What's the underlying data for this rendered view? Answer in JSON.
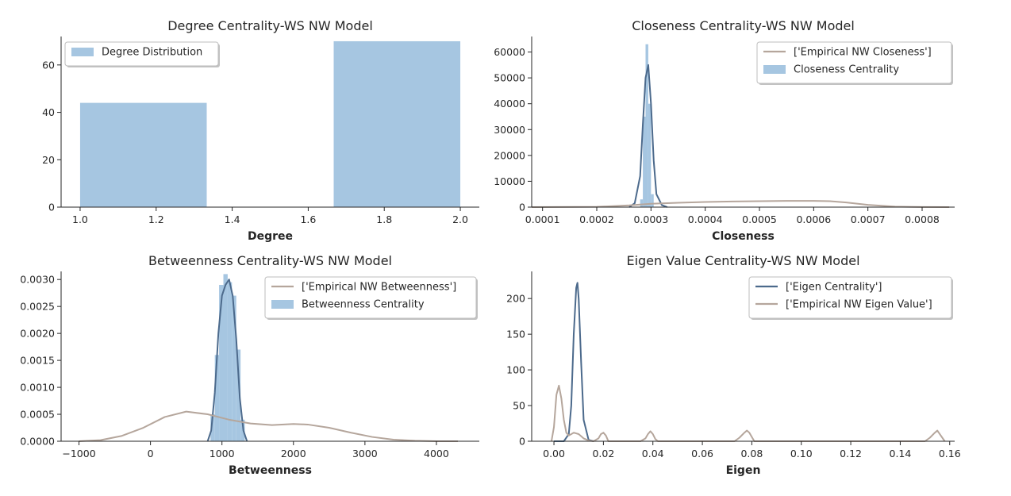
{
  "charts": [
    {
      "id": "degree",
      "type": "bar",
      "title": "Degree Centrality-WS NW Model",
      "xlabel": "Degree",
      "xlim": [
        0.95,
        2.05
      ],
      "ylim": [
        0,
        72
      ],
      "xticks": [
        1.0,
        1.2,
        1.4,
        1.6,
        1.8,
        2.0
      ],
      "xtick_labels": [
        "1.0",
        "1.2",
        "1.4",
        "1.6",
        "1.8",
        "2.0"
      ],
      "yticks": [
        0,
        20,
        40,
        60
      ],
      "ytick_labels": [
        "0",
        "20",
        "40",
        "60"
      ],
      "legend": [
        {
          "label": "Degree Distribution",
          "kind": "patch",
          "color": "#a6c6e1"
        }
      ],
      "bars": [
        {
          "x0": 1.0,
          "x1": 1.333,
          "value": 44
        },
        {
          "x0": 1.333,
          "x1": 1.667,
          "value": 0
        },
        {
          "x0": 1.667,
          "x1": 2.0,
          "value": 70
        }
      ],
      "lines": []
    },
    {
      "id": "closeness",
      "type": "area",
      "title": "Closeness Centrality-WS NW Model",
      "xlabel": "Closeness",
      "xlim": [
        8e-05,
        0.00086
      ],
      "ylim": [
        0,
        66000
      ],
      "xticks": [
        0.0001,
        0.0002,
        0.0003,
        0.0004,
        0.0005,
        0.0006,
        0.0007,
        0.0008
      ],
      "xtick_labels": [
        "0.0001",
        "0.0002",
        "0.0003",
        "0.0004",
        "0.0005",
        "0.0006",
        "0.0007",
        "0.0008"
      ],
      "yticks": [
        0,
        10000,
        20000,
        30000,
        40000,
        50000,
        60000
      ],
      "ytick_labels": [
        "0",
        "10000",
        "20000",
        "30000",
        "40000",
        "50000",
        "60000"
      ],
      "legend": [
        {
          "label": "['Empirical NW Closeness']",
          "kind": "line",
          "color": "#b5a69c"
        },
        {
          "label": "Closeness Centrality",
          "kind": "patch",
          "color": "#a6c6e1"
        }
      ],
      "bars": [
        {
          "x0": 0.00028,
          "x1": 0.000285,
          "value": 3000
        },
        {
          "x0": 0.000285,
          "x1": 0.00029,
          "value": 35000
        },
        {
          "x0": 0.00029,
          "x1": 0.000295,
          "value": 63000
        },
        {
          "x0": 0.000295,
          "x1": 0.0003,
          "value": 40000
        },
        {
          "x0": 0.0003,
          "x1": 0.000305,
          "value": 5000
        }
      ],
      "lines": [
        {
          "name": "Closeness KDE",
          "color": "#4c6a8c",
          "x": [
            0.00026,
            0.00027,
            0.00028,
            0.000285,
            0.00029,
            0.000295,
            0.0003,
            0.000305,
            0.00031,
            0.00032,
            0.00033
          ],
          "y": [
            0,
            1500,
            12000,
            32000,
            50000,
            55000,
            40000,
            18000,
            5000,
            800,
            0
          ]
        },
        {
          "name": "['Empirical NW Closeness']",
          "color": "#b5a69c",
          "x": [
            8e-05,
            0.0002,
            0.00026,
            0.0003,
            0.00035,
            0.0004,
            0.00045,
            0.0005,
            0.00055,
            0.0006,
            0.00063,
            0.00066,
            0.0007,
            0.00075,
            0.0008,
            0.00085
          ],
          "y": [
            0,
            100,
            700,
            1300,
            1700,
            2000,
            2200,
            2300,
            2400,
            2400,
            2300,
            1800,
            900,
            200,
            30,
            0
          ]
        }
      ]
    },
    {
      "id": "betweenness",
      "type": "area",
      "title": "Betweenness Centrality-WS NW Model",
      "xlabel": "Betweenness",
      "xlim": [
        -1250,
        4600
      ],
      "ylim": [
        0,
        0.00315
      ],
      "xticks": [
        -1000,
        0,
        1000,
        2000,
        3000,
        4000
      ],
      "xtick_labels": [
        "−1000",
        "0",
        "1000",
        "2000",
        "3000",
        "4000"
      ],
      "yticks": [
        0,
        0.0005,
        0.001,
        0.0015,
        0.002,
        0.0025,
        0.003
      ],
      "ytick_labels": [
        "0.0000",
        "0.0005",
        "0.0010",
        "0.0015",
        "0.0020",
        "0.0025",
        "0.0030"
      ],
      "legend": [
        {
          "label": "['Empirical NW Betweenness']",
          "kind": "line",
          "color": "#b5a69c"
        },
        {
          "label": "Betweenness Centrality",
          "kind": "patch",
          "color": "#a6c6e1"
        }
      ],
      "bars": [
        {
          "x0": 840,
          "x1": 900,
          "value": 0.0005
        },
        {
          "x0": 900,
          "x1": 960,
          "value": 0.0016
        },
        {
          "x0": 960,
          "x1": 1020,
          "value": 0.0029
        },
        {
          "x0": 1020,
          "x1": 1080,
          "value": 0.0031
        },
        {
          "x0": 1080,
          "x1": 1140,
          "value": 0.00295
        },
        {
          "x0": 1140,
          "x1": 1200,
          "value": 0.0027
        },
        {
          "x0": 1200,
          "x1": 1260,
          "value": 0.0017
        },
        {
          "x0": 1260,
          "x1": 1320,
          "value": 0.0004
        }
      ],
      "lines": [
        {
          "name": "Betweenness KDE",
          "color": "#4c6a8c",
          "x": [
            800,
            850,
            900,
            950,
            1000,
            1050,
            1100,
            1150,
            1200,
            1250,
            1300,
            1350
          ],
          "y": [
            0,
            0.0002,
            0.0009,
            0.002,
            0.0027,
            0.0029,
            0.003,
            0.0027,
            0.0019,
            0.0008,
            0.0002,
            0
          ]
        },
        {
          "name": "['Empirical NW Betweenness']",
          "color": "#b5a69c",
          "x": [
            -1000,
            -700,
            -400,
            -100,
            200,
            500,
            800,
            1100,
            1400,
            1700,
            2000,
            2200,
            2500,
            2800,
            3100,
            3400,
            3700,
            4000,
            4300
          ],
          "y": [
            0,
            2e-05,
            0.0001,
            0.00025,
            0.00045,
            0.00055,
            0.0005,
            0.0004,
            0.00033,
            0.0003,
            0.00032,
            0.00031,
            0.00025,
            0.00016,
            8e-05,
            3e-05,
            1e-05,
            0,
            0
          ]
        }
      ]
    },
    {
      "id": "eigen",
      "type": "line",
      "title": "Eigen Value Centrality-WS NW Model",
      "xlabel": "Eigen",
      "xlim": [
        -0.009,
        0.162
      ],
      "ylim": [
        0,
        238
      ],
      "xticks": [
        0.0,
        0.02,
        0.04,
        0.06,
        0.08,
        0.1,
        0.12,
        0.14,
        0.16
      ],
      "xtick_labels": [
        "0.00",
        "0.02",
        "0.04",
        "0.06",
        "0.08",
        "0.10",
        "0.12",
        "0.14",
        "0.16"
      ],
      "yticks": [
        0,
        50,
        100,
        150,
        200
      ],
      "ytick_labels": [
        "0",
        "50",
        "100",
        "150",
        "200"
      ],
      "legend": [
        {
          "label": "['Eigen Centrality']",
          "kind": "line",
          "color": "#4c6a8c"
        },
        {
          "label": "['Empirical NW Eigen Value']",
          "kind": "line",
          "color": "#b5a69c"
        }
      ],
      "bars": [],
      "lines": [
        {
          "name": "['Eigen Centrality']",
          "color": "#4c6a8c",
          "x": [
            0.0,
            0.004,
            0.006,
            0.007,
            0.008,
            0.009,
            0.0095,
            0.01,
            0.011,
            0.012,
            0.014,
            0.016
          ],
          "y": [
            0,
            0,
            10,
            50,
            150,
            215,
            222,
            200,
            110,
            30,
            2,
            0
          ]
        },
        {
          "name": "['Empirical NW Eigen Value']",
          "color": "#b5a69c",
          "x": [
            -0.001,
            0.0,
            0.001,
            0.002,
            0.003,
            0.004,
            0.005,
            0.006,
            0.008,
            0.01,
            0.012,
            0.014,
            0.016,
            0.018,
            0.019,
            0.02,
            0.021,
            0.022,
            0.035,
            0.037,
            0.038,
            0.039,
            0.04,
            0.041,
            0.042,
            0.073,
            0.075,
            0.077,
            0.078,
            0.079,
            0.081,
            0.15,
            0.152,
            0.154,
            0.155,
            0.156,
            0.158
          ],
          "y": [
            0,
            20,
            65,
            78,
            60,
            30,
            12,
            8,
            12,
            10,
            4,
            1,
            0,
            4,
            10,
            12,
            8,
            0,
            0,
            4,
            10,
            14,
            10,
            3,
            0,
            0,
            5,
            12,
            15,
            12,
            0,
            0,
            5,
            12,
            15,
            10,
            0
          ]
        }
      ]
    }
  ]
}
